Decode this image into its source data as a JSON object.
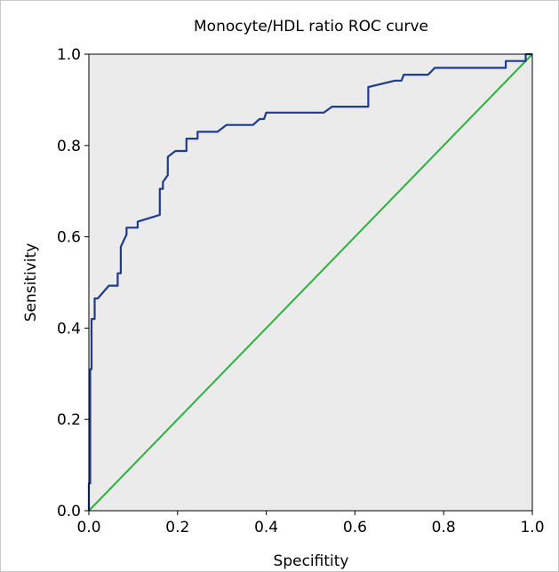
{
  "chart_data": {
    "type": "line",
    "title": "Monocyte/HDL ratio ROC curve",
    "xlabel": "Specifitity",
    "ylabel": "Sensitivity",
    "xlim": [
      0.0,
      1.0
    ],
    "ylim": [
      0.0,
      1.0
    ],
    "x_ticks": [
      "0.0",
      "0.2",
      "0.4",
      "0.6",
      "0.8",
      "1.0"
    ],
    "y_ticks": [
      "0.0",
      "0.2",
      "0.4",
      "0.6",
      "0.8",
      "1.0"
    ],
    "grid": false,
    "plot_background": "#ebebeb",
    "series": [
      {
        "color": "#1f3b8f",
        "points": [
          [
            0.0,
            0.0
          ],
          [
            0.0,
            0.06
          ],
          [
            0.003,
            0.06
          ],
          [
            0.003,
            0.31
          ],
          [
            0.006,
            0.31
          ],
          [
            0.006,
            0.42
          ],
          [
            0.013,
            0.42
          ],
          [
            0.013,
            0.465
          ],
          [
            0.02,
            0.465
          ],
          [
            0.045,
            0.493
          ],
          [
            0.065,
            0.493
          ],
          [
            0.065,
            0.52
          ],
          [
            0.072,
            0.52
          ],
          [
            0.072,
            0.578
          ],
          [
            0.085,
            0.605
          ],
          [
            0.085,
            0.62
          ],
          [
            0.11,
            0.62
          ],
          [
            0.11,
            0.633
          ],
          [
            0.16,
            0.648
          ],
          [
            0.16,
            0.705
          ],
          [
            0.167,
            0.705
          ],
          [
            0.167,
            0.72
          ],
          [
            0.178,
            0.735
          ],
          [
            0.178,
            0.775
          ],
          [
            0.195,
            0.788
          ],
          [
            0.22,
            0.788
          ],
          [
            0.22,
            0.815
          ],
          [
            0.245,
            0.815
          ],
          [
            0.245,
            0.83
          ],
          [
            0.29,
            0.83
          ],
          [
            0.31,
            0.845
          ],
          [
            0.37,
            0.845
          ],
          [
            0.385,
            0.858
          ],
          [
            0.395,
            0.858
          ],
          [
            0.4,
            0.872
          ],
          [
            0.53,
            0.872
          ],
          [
            0.548,
            0.885
          ],
          [
            0.63,
            0.885
          ],
          [
            0.63,
            0.928
          ],
          [
            0.69,
            0.942
          ],
          [
            0.705,
            0.942
          ],
          [
            0.71,
            0.955
          ],
          [
            0.765,
            0.955
          ],
          [
            0.78,
            0.97
          ],
          [
            0.94,
            0.97
          ],
          [
            0.94,
            0.985
          ],
          [
            0.985,
            0.985
          ],
          [
            0.985,
            1.0
          ],
          [
            1.0,
            1.0
          ]
        ]
      },
      {
        "color": "#2ab23c",
        "points": [
          [
            0.0,
            0.0
          ],
          [
            1.0,
            1.0
          ]
        ]
      }
    ]
  }
}
